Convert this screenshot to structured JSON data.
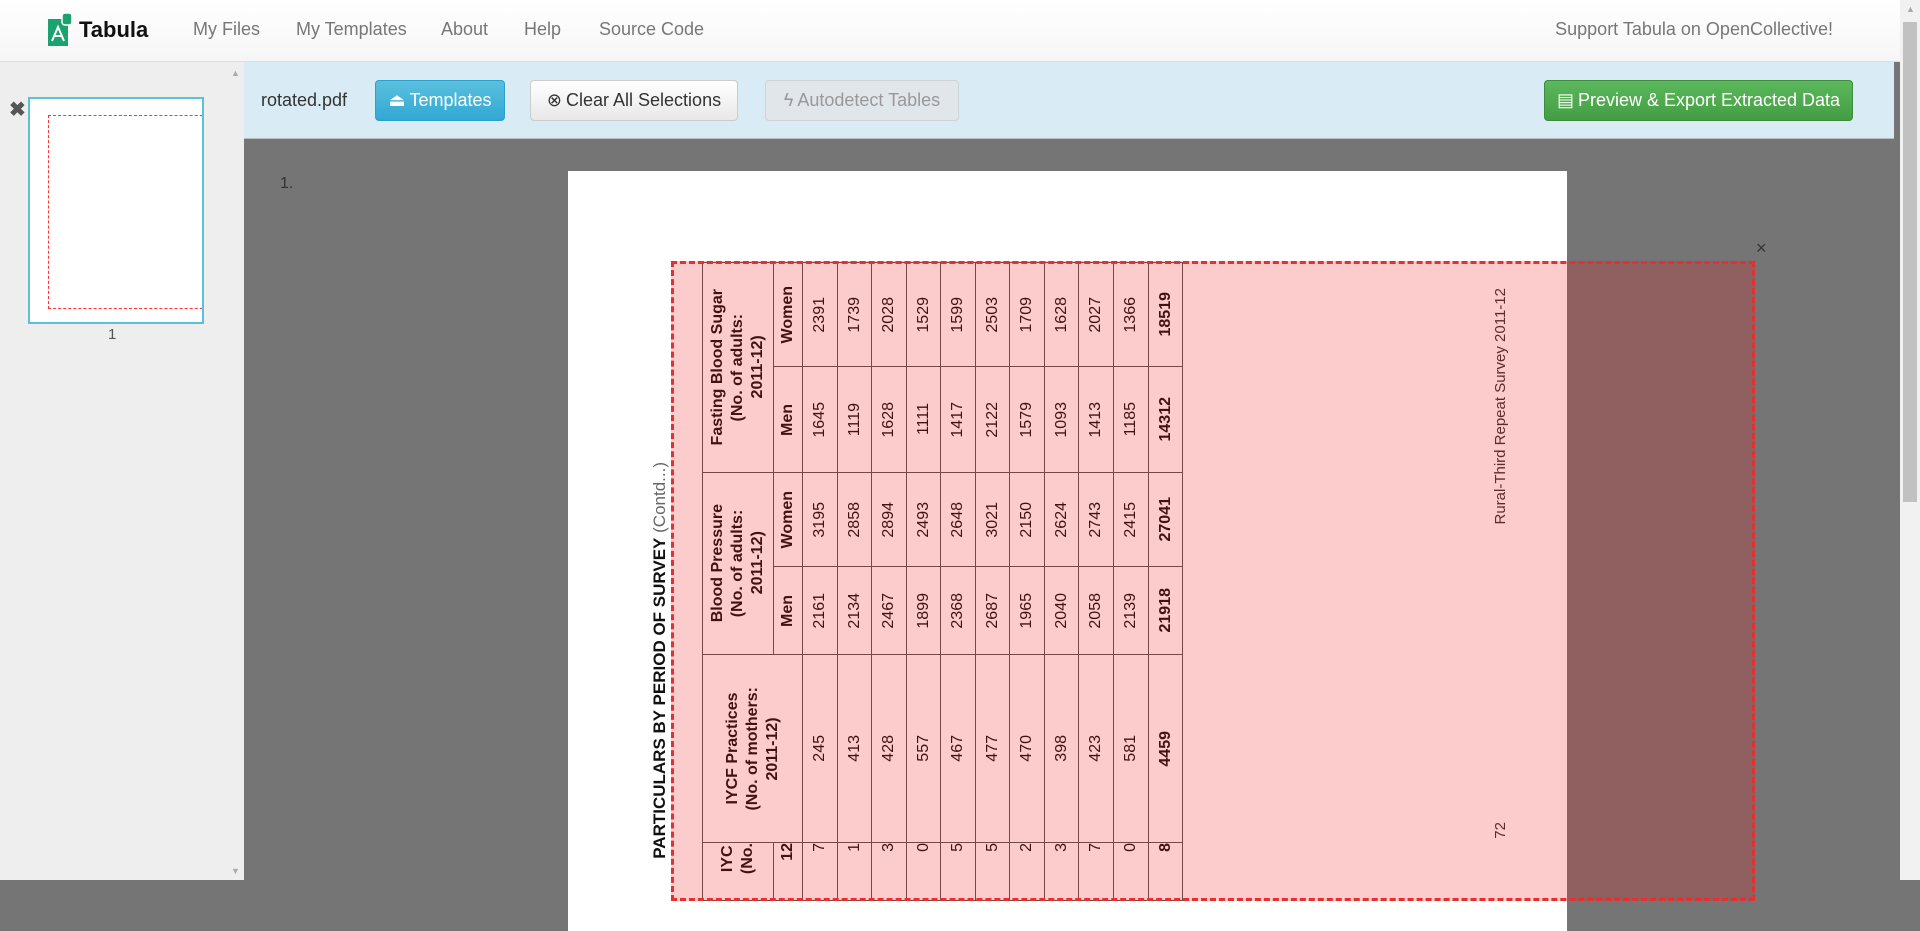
{
  "nav": {
    "brand": "Tabula",
    "links": [
      "My Files",
      "My Templates",
      "About",
      "Help",
      "Source Code"
    ],
    "support": "Support Tabula on OpenCollective!"
  },
  "toolbar": {
    "filename": "rotated.pdf",
    "templates": "Templates",
    "clear": "Clear All Selections",
    "autodetect": "Autodetect Tables",
    "export": "Preview & Export Extracted Data"
  },
  "sidebar": {
    "thumb_page": "1",
    "remove_icon": "✖"
  },
  "viewer": {
    "page_label": "1.",
    "selection_close": "×"
  },
  "document": {
    "title": "PARTICULARS BY PERIOD OF SURVEY",
    "title_suffix": "(Contd...)",
    "footer_text": "Rural-Third Repeat Survey 2011-12",
    "page_number": "72",
    "groups": {
      "fbs": [
        "Fasting  Blood Sugar",
        "(No. of adults:",
        "2011-12)"
      ],
      "bp": [
        "Blood Pressure",
        "(No. of adults:",
        "2011-12)"
      ],
      "iycf": [
        "IYCF Practices",
        "(No. of mothers:",
        "2011-12)"
      ],
      "prev_cut": [
        "IYC",
        "(No."
      ]
    },
    "sub": {
      "men": "Men",
      "women": "Women",
      "prev_cut": "12"
    },
    "rows": [
      {
        "iycf": "245",
        "bp_men": "2161",
        "bp_women": "3195",
        "fbs_men": "1645",
        "fbs_women": "2391",
        "prev_cut": "7"
      },
      {
        "iycf": "413",
        "bp_men": "2134",
        "bp_women": "2858",
        "fbs_men": "1119",
        "fbs_women": "1739",
        "prev_cut": "1"
      },
      {
        "iycf": "428",
        "bp_men": "2467",
        "bp_women": "2894",
        "fbs_men": "1628",
        "fbs_women": "2028",
        "prev_cut": "3"
      },
      {
        "iycf": "557",
        "bp_men": "1899",
        "bp_women": "2493",
        "fbs_men": "1111",
        "fbs_women": "1529",
        "prev_cut": "0"
      },
      {
        "iycf": "467",
        "bp_men": "2368",
        "bp_women": "2648",
        "fbs_men": "1417",
        "fbs_women": "1599",
        "prev_cut": "5"
      },
      {
        "iycf": "477",
        "bp_men": "2687",
        "bp_women": "3021",
        "fbs_men": "2122",
        "fbs_women": "2503",
        "prev_cut": "5"
      },
      {
        "iycf": "470",
        "bp_men": "1965",
        "bp_women": "2150",
        "fbs_men": "1579",
        "fbs_women": "1709",
        "prev_cut": "2"
      },
      {
        "iycf": "398",
        "bp_men": "2040",
        "bp_women": "2624",
        "fbs_men": "1093",
        "fbs_women": "1628",
        "prev_cut": "3"
      },
      {
        "iycf": "423",
        "bp_men": "2058",
        "bp_women": "2743",
        "fbs_men": "1413",
        "fbs_women": "2027",
        "prev_cut": "7"
      },
      {
        "iycf": "581",
        "bp_men": "2139",
        "bp_women": "2415",
        "fbs_men": "1185",
        "fbs_women": "1366",
        "prev_cut": "0"
      },
      {
        "iycf": "4459",
        "bp_men": "21918",
        "bp_women": "27041",
        "fbs_men": "14312",
        "fbs_women": "18519",
        "prev_cut": "8",
        "total": true
      }
    ]
  },
  "colors": {
    "accent": "#5bc0de",
    "export": "#4cae4c",
    "selection": "#e53030"
  }
}
